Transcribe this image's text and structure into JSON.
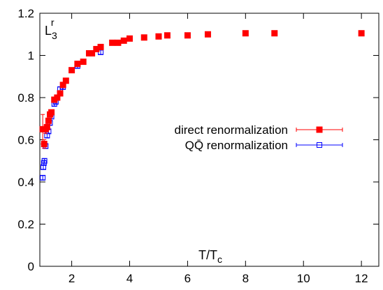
{
  "chart_data": {
    "type": "scatter",
    "title": "",
    "xlabel": "T/T",
    "xlabel_sub": "c",
    "ylabel": "L",
    "ylabel_sub": "3",
    "ylabel_sup": "r",
    "xlim": [
      0.9,
      12.6
    ],
    "ylim": [
      0,
      1.2
    ],
    "xticks": [
      2,
      4,
      6,
      8,
      10,
      12
    ],
    "yticks": [
      0,
      0.2,
      0.4,
      0.6,
      0.8,
      1,
      1.2
    ],
    "xtick_labels": [
      "2",
      "4",
      "6",
      "8",
      "10",
      "12"
    ],
    "ytick_labels": [
      "0",
      "0.2",
      "0.4",
      "0.6",
      "0.8",
      "1",
      "1.2"
    ],
    "grid": false,
    "legend_position": "right-middle",
    "series": [
      {
        "name": "direct renormalization",
        "color": "#ff0000",
        "marker": "filled-square",
        "points": [
          {
            "x": 1.0,
            "y": 0.65,
            "err": 0.07
          },
          {
            "x": 1.05,
            "y": 0.58,
            "err": 0.02
          },
          {
            "x": 1.1,
            "y": 0.65,
            "err": 0.02
          },
          {
            "x": 1.15,
            "y": 0.66,
            "err": 0.01
          },
          {
            "x": 1.2,
            "y": 0.69,
            "err": 0.01
          },
          {
            "x": 1.25,
            "y": 0.72,
            "err": 0.01
          },
          {
            "x": 1.3,
            "y": 0.73,
            "err": 0.01
          },
          {
            "x": 1.4,
            "y": 0.79,
            "err": 0.01
          },
          {
            "x": 1.5,
            "y": 0.8,
            "err": 0.01
          },
          {
            "x": 1.6,
            "y": 0.82,
            "err": 0.01
          },
          {
            "x": 1.7,
            "y": 0.86,
            "err": 0.01
          },
          {
            "x": 1.8,
            "y": 0.88,
            "err": 0.01
          },
          {
            "x": 2.0,
            "y": 0.93,
            "err": 0.01
          },
          {
            "x": 2.2,
            "y": 0.96,
            "err": 0.01
          },
          {
            "x": 2.4,
            "y": 0.97,
            "err": 0.01
          },
          {
            "x": 2.6,
            "y": 1.01,
            "err": 0.01
          },
          {
            "x": 2.7,
            "y": 1.01,
            "err": 0.01
          },
          {
            "x": 2.85,
            "y": 1.03,
            "err": 0.01
          },
          {
            "x": 3.0,
            "y": 1.04,
            "err": 0.01
          },
          {
            "x": 3.4,
            "y": 1.06,
            "err": 0.01
          },
          {
            "x": 3.6,
            "y": 1.06,
            "err": 0.01
          },
          {
            "x": 3.8,
            "y": 1.07,
            "err": 0.01
          },
          {
            "x": 4.0,
            "y": 1.08,
            "err": 0.01
          },
          {
            "x": 4.5,
            "y": 1.085,
            "err": 0.01
          },
          {
            "x": 5.0,
            "y": 1.09,
            "err": 0.01
          },
          {
            "x": 5.3,
            "y": 1.095,
            "err": 0.01
          },
          {
            "x": 6.0,
            "y": 1.095,
            "err": 0.01
          },
          {
            "x": 6.7,
            "y": 1.1,
            "err": 0.01
          },
          {
            "x": 8.0,
            "y": 1.105,
            "err": 0.01
          },
          {
            "x": 9.0,
            "y": 1.105,
            "err": 0.01
          },
          {
            "x": 12.0,
            "y": 1.105,
            "err": 0.01
          }
        ]
      },
      {
        "name": "QQ̄ renormalization",
        "color": "#0000ff",
        "marker": "open-square",
        "points": [
          {
            "x": 1.0,
            "y": 0.42,
            "err": 0.01
          },
          {
            "x": 1.02,
            "y": 0.47,
            "err": 0.01
          },
          {
            "x": 1.04,
            "y": 0.49,
            "err": 0.01
          },
          {
            "x": 1.06,
            "y": 0.5,
            "err": 0.01
          },
          {
            "x": 1.1,
            "y": 0.57,
            "err": 0.01
          },
          {
            "x": 1.15,
            "y": 0.62,
            "err": 0.01
          },
          {
            "x": 1.2,
            "y": 0.64,
            "err": 0.01
          },
          {
            "x": 1.25,
            "y": 0.68,
            "err": 0.01
          },
          {
            "x": 1.3,
            "y": 0.71,
            "err": 0.01
          },
          {
            "x": 1.4,
            "y": 0.77,
            "err": 0.01
          },
          {
            "x": 1.45,
            "y": 0.78,
            "err": 0.01
          },
          {
            "x": 1.5,
            "y": 0.8,
            "err": 0.01
          },
          {
            "x": 1.6,
            "y": 0.84,
            "err": 0.01
          },
          {
            "x": 1.7,
            "y": 0.85,
            "err": 0.01
          },
          {
            "x": 2.0,
            "y": 0.93,
            "err": 0.01
          },
          {
            "x": 2.2,
            "y": 0.95,
            "err": 0.01
          },
          {
            "x": 3.0,
            "y": 1.015,
            "err": 0.01
          },
          {
            "x": 6.0,
            "y": 1.095,
            "err": 0.01
          },
          {
            "x": 9.0,
            "y": 1.105,
            "err": 0.01
          },
          {
            "x": 12.0,
            "y": 1.105,
            "err": 0.01
          }
        ]
      }
    ]
  }
}
